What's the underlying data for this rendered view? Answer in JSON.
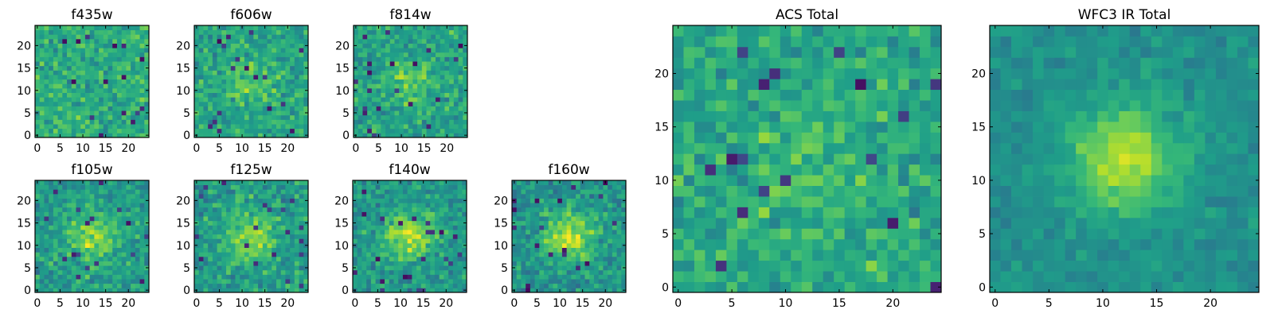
{
  "chart_data": {
    "type": "heatmap",
    "colormap": "viridis",
    "grid_size": [
      25,
      25
    ],
    "x_range": [
      -0.5,
      24.5
    ],
    "y_range": [
      -0.5,
      24.5
    ],
    "grid": false,
    "legend": "none",
    "small_ticks": [
      "0",
      "5",
      "10",
      "15",
      "20"
    ],
    "large_ticks": [
      "0",
      "5",
      "10",
      "15",
      "20"
    ],
    "panels": [
      {
        "title": "f435w",
        "size": "small",
        "central_source": 0.0
      },
      {
        "title": "f606w",
        "size": "small",
        "central_source": 0.15
      },
      {
        "title": "f814w",
        "size": "small",
        "central_source": 0.2
      },
      {
        "title": "f105w",
        "size": "small",
        "central_source": 0.3
      },
      {
        "title": "f125w",
        "size": "small",
        "central_source": 0.3
      },
      {
        "title": "f140w",
        "size": "small",
        "central_source": 0.35
      },
      {
        "title": "f160w",
        "size": "small",
        "central_source": 0.4
      },
      {
        "title": "ACS Total",
        "size": "large",
        "central_source": 0.1
      },
      {
        "title": "WFC3 IR Total",
        "size": "large",
        "central_source": 0.55
      }
    ]
  }
}
